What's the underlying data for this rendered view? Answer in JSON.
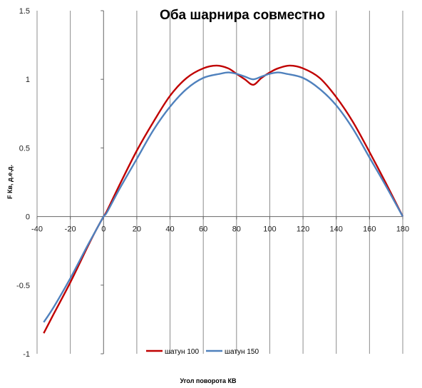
{
  "chart_data": {
    "type": "line",
    "title": "Оба шарнира совместно",
    "xlabel": "Угол поворота  КВ",
    "ylabel": "F Кв, д.е.д.",
    "xlim": [
      -40,
      180
    ],
    "ylim": [
      -1,
      1.5
    ],
    "x_ticks": [
      "-40",
      "-20",
      "0",
      "20",
      "40",
      "60",
      "80",
      "100",
      "120",
      "140",
      "160",
      "180"
    ],
    "y_ticks": [
      "1.5",
      "1",
      "0.5",
      "0",
      "-0.5",
      "-1"
    ],
    "grid": {
      "vertical": true,
      "horizontal": false
    },
    "legend_position": "bottom-center",
    "series": [
      {
        "name": "шатун 100",
        "color": "#c00000",
        "x": [
          -36,
          -30,
          -20,
          -10,
          -5,
          0,
          2,
          10,
          20,
          30,
          40,
          50,
          60,
          68,
          75,
          80,
          85,
          90,
          95,
          100,
          105,
          112,
          120,
          130,
          140,
          150,
          160,
          170,
          180
        ],
        "y": [
          -0.85,
          -0.71,
          -0.48,
          -0.23,
          -0.11,
          0.0,
          0.04,
          0.24,
          0.48,
          0.69,
          0.88,
          1.01,
          1.08,
          1.1,
          1.08,
          1.04,
          1.0,
          0.96,
          1.01,
          1.05,
          1.08,
          1.1,
          1.08,
          1.01,
          0.87,
          0.69,
          0.47,
          0.24,
          0.0
        ]
      },
      {
        "name": "шатун 150",
        "color": "#4f81bd",
        "x": [
          -36,
          -30,
          -20,
          -10,
          -5,
          0,
          2,
          10,
          20,
          30,
          40,
          50,
          60,
          70,
          75,
          80,
          85,
          90,
          95,
          100,
          105,
          110,
          120,
          130,
          140,
          150,
          160,
          170,
          180
        ],
        "y": [
          -0.77,
          -0.66,
          -0.45,
          -0.22,
          -0.11,
          0.0,
          0.03,
          0.21,
          0.42,
          0.63,
          0.8,
          0.93,
          1.01,
          1.04,
          1.05,
          1.04,
          1.02,
          1.0,
          1.02,
          1.04,
          1.05,
          1.04,
          1.01,
          0.93,
          0.81,
          0.64,
          0.43,
          0.22,
          0.0
        ]
      }
    ]
  }
}
